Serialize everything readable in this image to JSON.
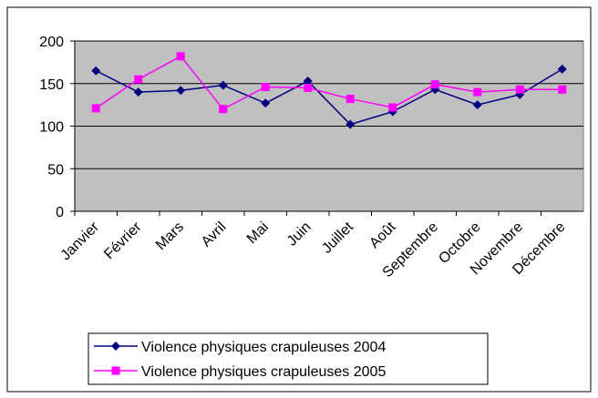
{
  "chart_data": {
    "type": "line",
    "categories": [
      "Janvier",
      "Février",
      "Mars",
      "Avril",
      "Mai",
      "Juin",
      "Juillet",
      "Août",
      "Septembre",
      "Octobre",
      "Novembre",
      "Décembre"
    ],
    "series": [
      {
        "name": "Violence physiques crapuleuses 2004",
        "color": "#000080",
        "marker": "diamond",
        "values": [
          165,
          140,
          142,
          148,
          127,
          153,
          102,
          117,
          143,
          125,
          137,
          167
        ]
      },
      {
        "name": "Violence physiques crapuleuses 2005",
        "color": "#ff00ff",
        "marker": "square",
        "values": [
          121,
          155,
          182,
          120,
          146,
          145,
          132,
          122,
          149,
          140,
          143,
          143
        ]
      }
    ],
    "ylim": [
      0,
      200
    ],
    "yticks": [
      0,
      50,
      100,
      150,
      200
    ],
    "grid": true,
    "legend": "bottom"
  }
}
